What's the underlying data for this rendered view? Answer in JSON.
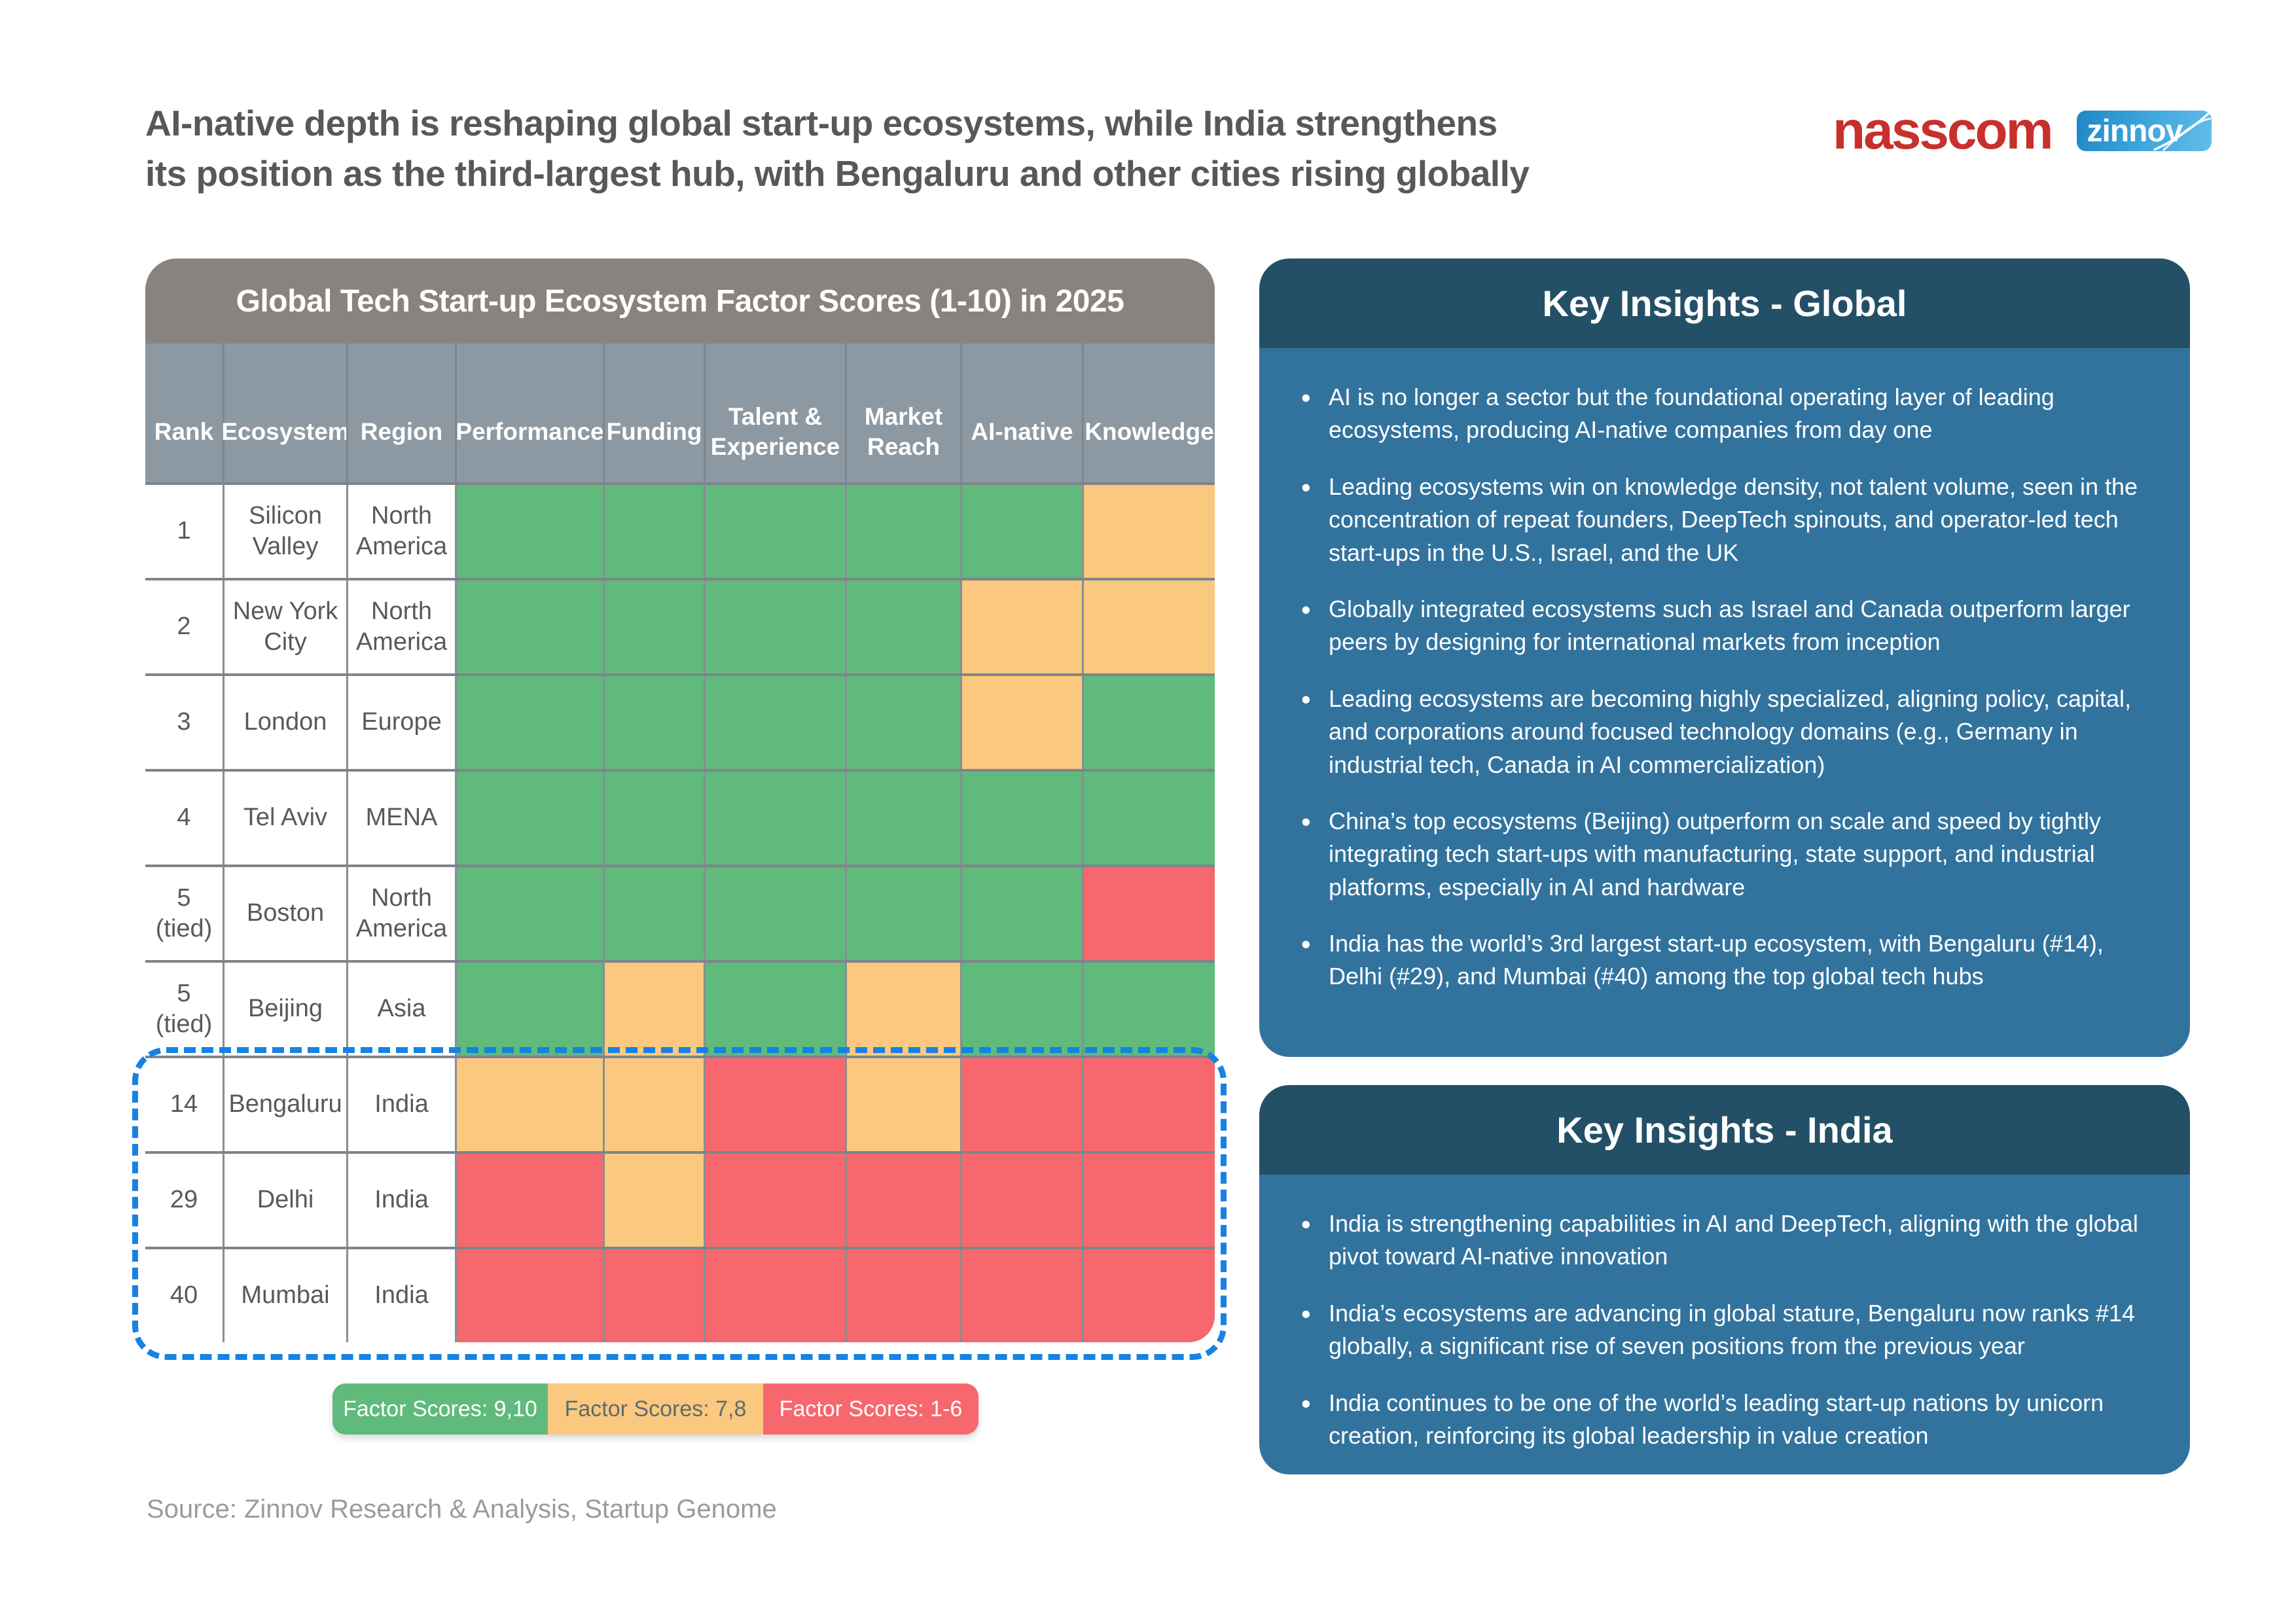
{
  "header": {
    "title_lines": [
      "AI-native depth is reshaping global start-up ecosystems, while India strengthens",
      "its position as the third-largest hub, with Bengaluru and other cities rising globally"
    ],
    "logos": {
      "nasscom": "nasscom",
      "zinnov": "zinnov"
    }
  },
  "table": {
    "title": "Global Tech Start-up Ecosystem Factor Scores (1-10) in 2025",
    "columns": [
      "Rank",
      "Ecosystem",
      "Region",
      "Performance",
      "Funding",
      "Talent & Experience",
      "Market Reach",
      "AI-native",
      "Knowledge"
    ],
    "rows": [
      {
        "rank": "1",
        "ecosystem": "Silicon Valley",
        "region": "North America",
        "scores": [
          "9-10",
          "9-10",
          "9-10",
          "9-10",
          "9-10",
          "7-8"
        ],
        "highlighted": false
      },
      {
        "rank": "2",
        "ecosystem": "New York City",
        "region": "North America",
        "scores": [
          "9-10",
          "9-10",
          "9-10",
          "9-10",
          "7-8",
          "7-8"
        ],
        "highlighted": false
      },
      {
        "rank": "3",
        "ecosystem": "London",
        "region": "Europe",
        "scores": [
          "9-10",
          "9-10",
          "9-10",
          "9-10",
          "7-8",
          "9-10"
        ],
        "highlighted": false
      },
      {
        "rank": "4",
        "ecosystem": "Tel Aviv",
        "region": "MENA",
        "scores": [
          "9-10",
          "9-10",
          "9-10",
          "9-10",
          "9-10",
          "9-10"
        ],
        "highlighted": false
      },
      {
        "rank": "5\n(tied)",
        "ecosystem": "Boston",
        "region": "North America",
        "scores": [
          "9-10",
          "9-10",
          "9-10",
          "9-10",
          "9-10",
          "1-6"
        ],
        "highlighted": false
      },
      {
        "rank": "5\n(tied)",
        "ecosystem": "Beijing",
        "region": "Asia",
        "scores": [
          "9-10",
          "7-8",
          "9-10",
          "7-8",
          "9-10",
          "9-10"
        ],
        "highlighted": false
      },
      {
        "rank": "14",
        "ecosystem": "Bengaluru",
        "region": "India",
        "scores": [
          "7-8",
          "7-8",
          "1-6",
          "7-8",
          "1-6",
          "1-6"
        ],
        "highlighted": true
      },
      {
        "rank": "29",
        "ecosystem": "Delhi",
        "region": "India",
        "scores": [
          "1-6",
          "7-8",
          "1-6",
          "1-6",
          "1-6",
          "1-6"
        ],
        "highlighted": true
      },
      {
        "rank": "40",
        "ecosystem": "Mumbai",
        "region": "India",
        "scores": [
          "1-6",
          "1-6",
          "1-6",
          "1-6",
          "1-6",
          "1-6"
        ],
        "highlighted": true
      }
    ]
  },
  "score_bands": {
    "9-10": {
      "color": "#5fba7c",
      "text": "#ffffff",
      "legend_label": "Factor Scores: 9,10"
    },
    "7-8": {
      "color": "#fac87e",
      "text": "#5f6a70",
      "legend_label": "Factor Scores: 7,8"
    },
    "1-6": {
      "color": "#f6686d",
      "text": "#ffffff",
      "legend_label": "Factor Scores: 1-6"
    }
  },
  "legend_order": [
    "9-10",
    "7-8",
    "1-6"
  ],
  "highlight": {
    "color": "#1682e4",
    "rows": [
      "Bengaluru",
      "Delhi",
      "Mumbai"
    ]
  },
  "insights_global": {
    "title": "Key Insights - Global",
    "bullets": [
      "AI is no longer a sector but the foundational operating layer of leading ecosystems, producing AI-native companies from day one",
      "Leading ecosystems win on knowledge density, not talent volume, seen in the concentration of repeat founders, DeepTech spinouts, and operator-led tech start-ups in the U.S., Israel, and the UK",
      "Globally integrated ecosystems such as Israel and Canada outperform larger peers by designing for international markets from inception",
      "Leading ecosystems are becoming highly specialized, aligning policy, capital, and corporations around focused technology domains (e.g., Germany in industrial tech, Canada in AI commercialization)",
      "China’s top ecosystems (Beijing) outperform on scale and speed by tightly integrating tech start-ups with manufacturing, state support, and industrial platforms, especially in AI and hardware",
      "India has the world’s 3rd largest start-up ecosystem, with Bengaluru (#14), Delhi (#29), and Mumbai (#40) among the top global tech hubs"
    ]
  },
  "insights_india": {
    "title": "Key Insights - India",
    "bullets": [
      "India is strengthening capabilities in AI and DeepTech, aligning with the global pivot toward AI-native innovation",
      "India’s ecosystems are advancing in global stature, Bengaluru now ranks #14 globally, a significant rise of seven positions from the previous year",
      "India continues to be one of the world’s leading start-up nations by unicorn creation, reinforcing its global leadership in value creation"
    ]
  },
  "source": "Source: Zinnov Research & Analysis, Startup Genome",
  "chart_data": {
    "type": "heatmap",
    "title": "Global Tech Start-up Ecosystem Factor Scores (1-10) in 2025",
    "x": [
      "Performance",
      "Funding",
      "Talent & Experience",
      "Market Reach",
      "AI-native",
      "Knowledge"
    ],
    "y": [
      "Silicon Valley",
      "New York City",
      "London",
      "Tel Aviv",
      "Boston",
      "Beijing",
      "Bengaluru",
      "Delhi",
      "Mumbai"
    ],
    "ranks": [
      "1",
      "2",
      "3",
      "4",
      "5 (tied)",
      "5 (tied)",
      "14",
      "29",
      "40"
    ],
    "regions": [
      "North America",
      "North America",
      "Europe",
      "MENA",
      "North America",
      "Asia",
      "India",
      "India",
      "India"
    ],
    "values": [
      [
        "9-10",
        "9-10",
        "9-10",
        "9-10",
        "9-10",
        "7-8"
      ],
      [
        "9-10",
        "9-10",
        "9-10",
        "9-10",
        "7-8",
        "7-8"
      ],
      [
        "9-10",
        "9-10",
        "9-10",
        "9-10",
        "7-8",
        "9-10"
      ],
      [
        "9-10",
        "9-10",
        "9-10",
        "9-10",
        "9-10",
        "9-10"
      ],
      [
        "9-10",
        "9-10",
        "9-10",
        "9-10",
        "9-10",
        "1-6"
      ],
      [
        "9-10",
        "7-8",
        "9-10",
        "7-8",
        "9-10",
        "9-10"
      ],
      [
        "7-8",
        "7-8",
        "1-6",
        "7-8",
        "1-6",
        "1-6"
      ],
      [
        "1-6",
        "7-8",
        "1-6",
        "1-6",
        "1-6",
        "1-6"
      ],
      [
        "1-6",
        "1-6",
        "1-6",
        "1-6",
        "1-6",
        "1-6"
      ]
    ],
    "legend": [
      {
        "band": "9-10",
        "label": "Factor Scores: 9,10",
        "color": "#5fba7c"
      },
      {
        "band": "7-8",
        "label": "Factor Scores: 7,8",
        "color": "#fac87e"
      },
      {
        "band": "1-6",
        "label": "Factor Scores: 1-6",
        "color": "#f6686d"
      }
    ],
    "legend_position": "bottom",
    "highlighted_rows": [
      "Bengaluru",
      "Delhi",
      "Mumbai"
    ]
  }
}
